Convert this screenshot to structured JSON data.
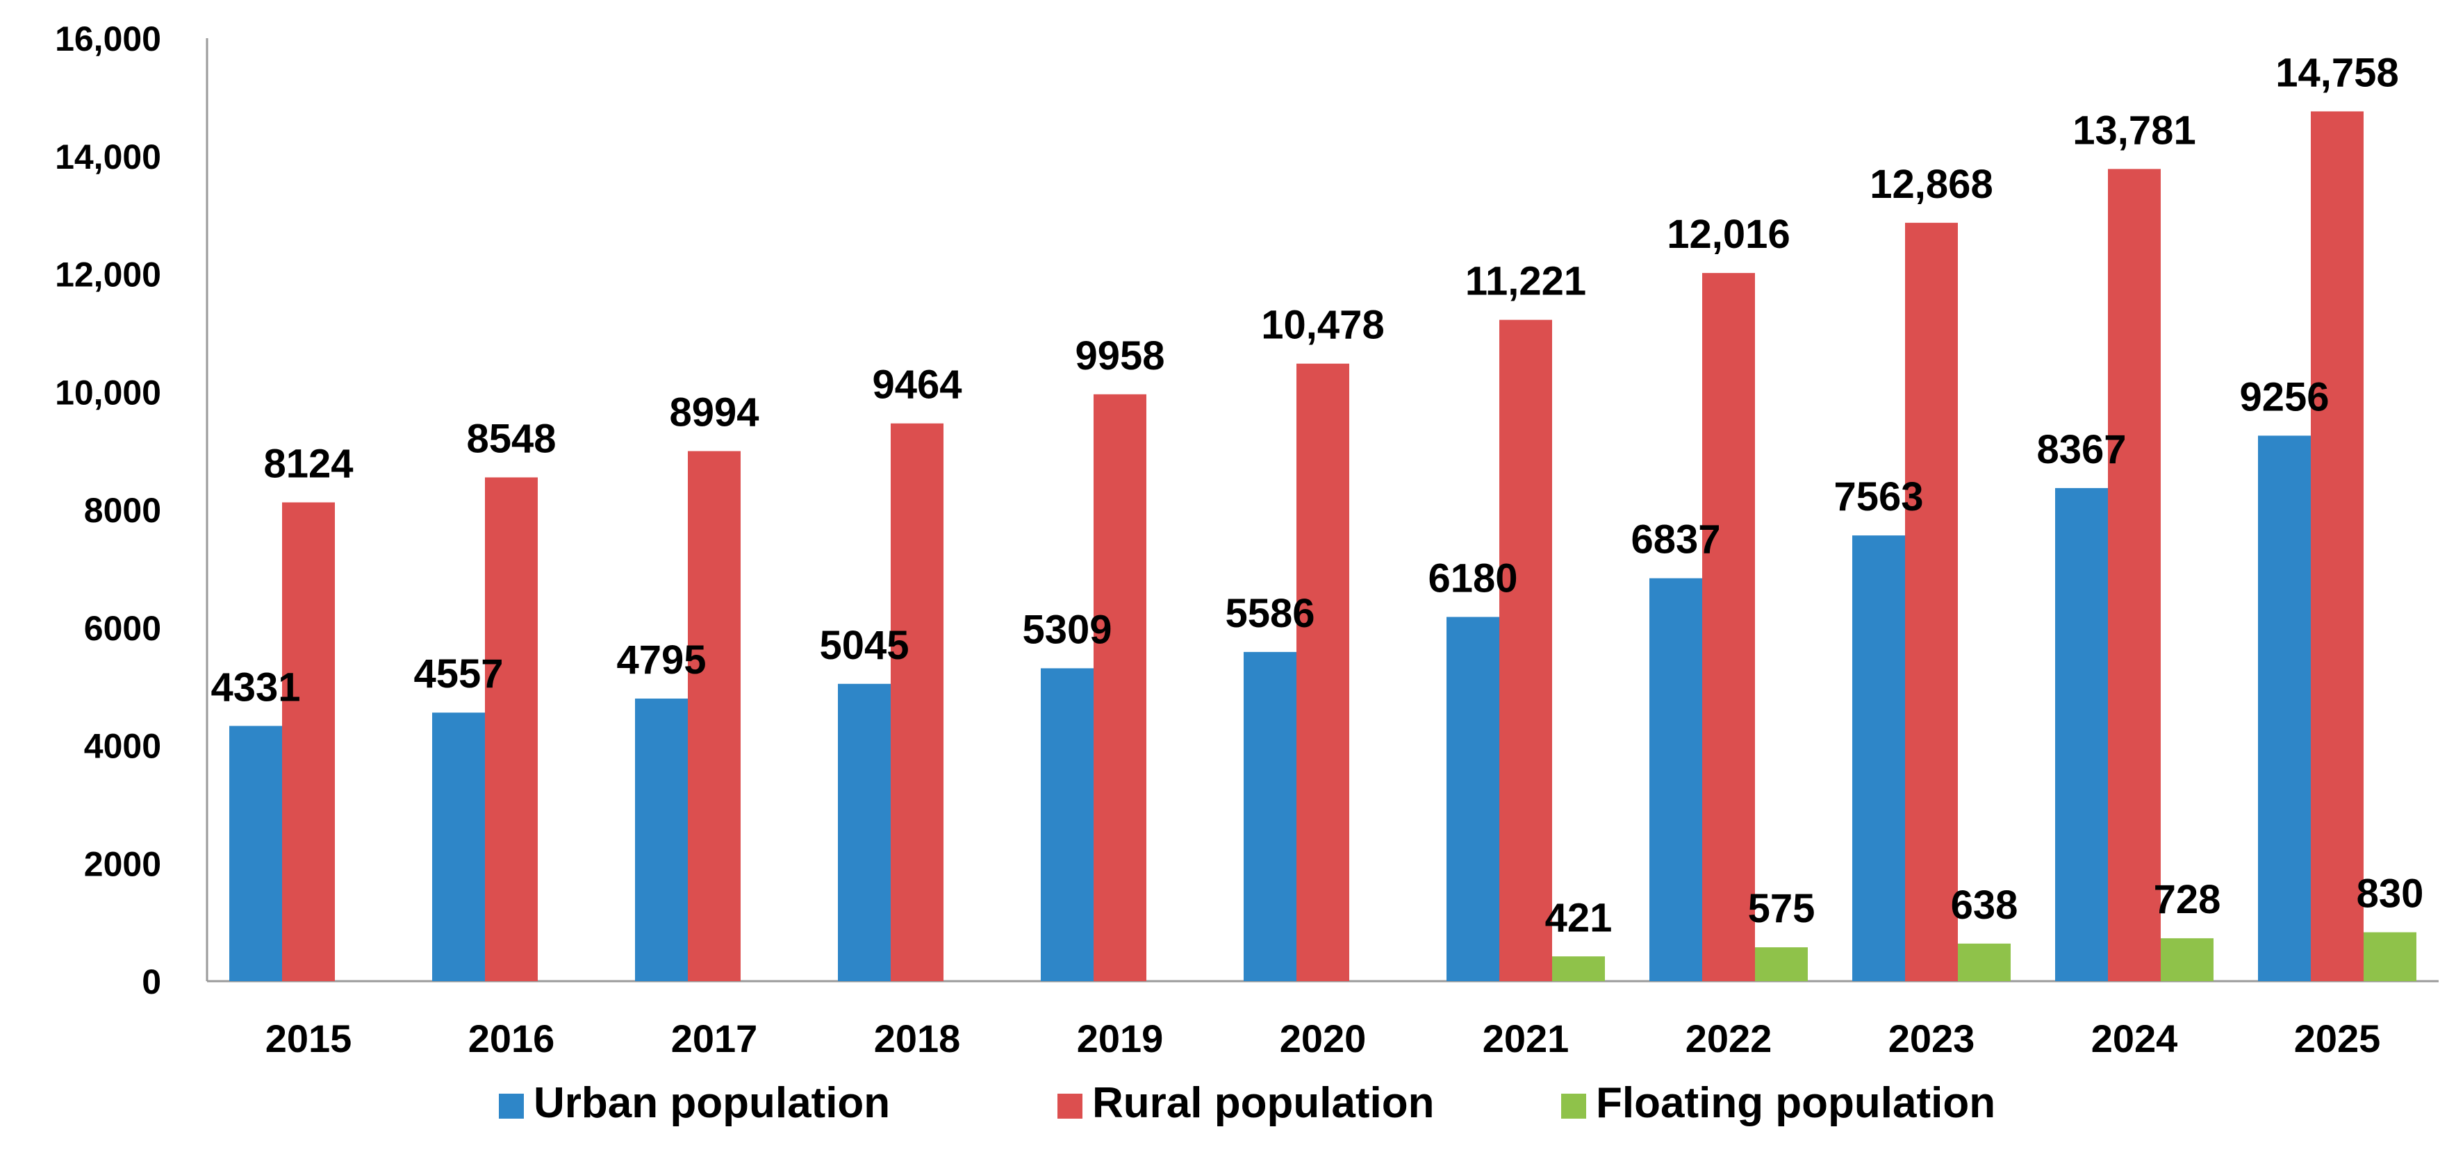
{
  "chart_data": {
    "type": "bar",
    "title": "",
    "xlabel": "",
    "ylabel": "",
    "categories": [
      "2015",
      "2016",
      "2017",
      "2018",
      "2019",
      "2020",
      "2021",
      "2022",
      "2023",
      "2024",
      "2025"
    ],
    "ylim": [
      0,
      16000
    ],
    "yticks": [
      0,
      2000,
      4000,
      6000,
      8000,
      10000,
      12000,
      14000,
      16000
    ],
    "ytick_labels": [
      "0",
      "2000",
      "4000",
      "6000",
      "8000",
      "10,000",
      "12,000",
      "14,000",
      "16,000"
    ],
    "grid": false,
    "legend_position": "bottom",
    "series": [
      {
        "name": "Urban population",
        "color": "#2e86c8",
        "values": [
          4331,
          4557,
          4795,
          5045,
          5309,
          5586,
          6180,
          6837,
          7563,
          8367,
          9256
        ],
        "labels": [
          "4331",
          "4557",
          "4795",
          "5045",
          "5309",
          "5586",
          "6180",
          "6837",
          "7563",
          "8367",
          "9256"
        ]
      },
      {
        "name": "Rural population",
        "color": "#dc4f4f",
        "values": [
          8124,
          8548,
          8994,
          9464,
          9958,
          10478,
          11221,
          12016,
          12868,
          13781,
          14758
        ],
        "labels": [
          "8124",
          "8548",
          "8994",
          "9464",
          "9958",
          "10,478",
          "11,221",
          "12,016",
          "12,868",
          "13,781",
          "14,758"
        ]
      },
      {
        "name": "Floating population",
        "color": "#8fc24a",
        "values": [
          null,
          null,
          null,
          null,
          null,
          null,
          421,
          575,
          638,
          728,
          830
        ],
        "labels": [
          null,
          null,
          null,
          null,
          null,
          null,
          "421",
          "575",
          "638",
          "728",
          "830"
        ]
      }
    ]
  }
}
